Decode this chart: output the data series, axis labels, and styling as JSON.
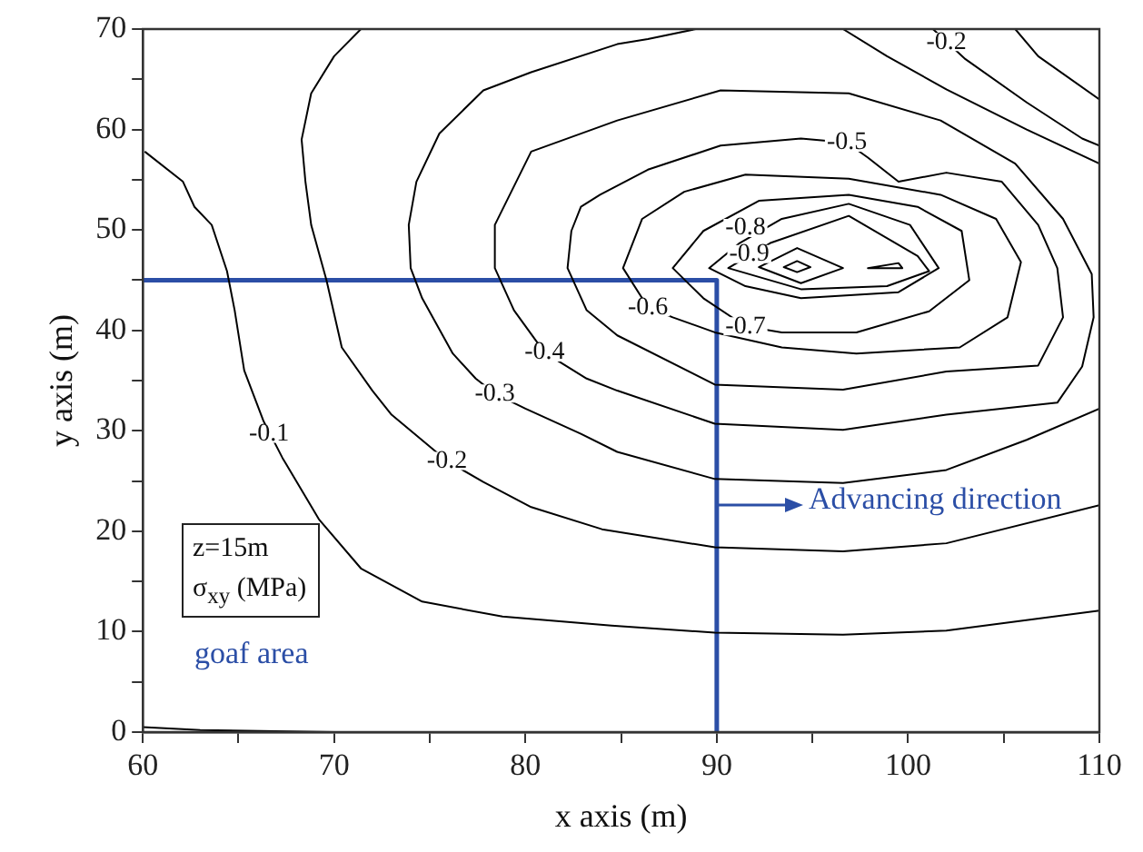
{
  "chart_data": {
    "type": "line",
    "xlabel": "x axis (m)",
    "ylabel": "y axis (m)",
    "xlim": [
      60,
      110
    ],
    "ylim": [
      0,
      70
    ],
    "xticks": [
      60,
      {
        "value": 65,
        "label": null
      },
      70,
      {
        "value": 75,
        "label": null
      },
      80,
      {
        "value": 85,
        "label": null
      },
      90,
      {
        "value": 95,
        "label": null
      },
      100,
      {
        "value": 105,
        "label": null
      },
      110
    ],
    "yticks": [
      0,
      {
        "value": 5,
        "label": null
      },
      10,
      {
        "value": 15,
        "label": null
      },
      20,
      {
        "value": 25,
        "label": null
      },
      30,
      {
        "value": 35,
        "label": null
      },
      40,
      {
        "value": 45,
        "label": null
      },
      50,
      {
        "value": 55,
        "label": null
      },
      60,
      {
        "value": 65,
        "label": null
      },
      70
    ],
    "grid": false,
    "legend": false,
    "marker": "none",
    "line_style": "solid",
    "series": [
      {
        "color": "#000000",
        "x": [
          60.1,
          62.1,
          62.7,
          63.6,
          64.4,
          64.8,
          65.3,
          66.3,
          67.3,
          69.2,
          71.4,
          74.6,
          78.8,
          84.5,
          89.9,
          96.6,
          102,
          110
        ],
        "values": [
          57.8,
          54.8,
          52.3,
          50.5,
          45.9,
          42,
          36,
          31,
          27.3,
          21.2,
          16.3,
          13,
          11.5,
          10.6,
          9.9,
          9.7,
          10.1,
          12.1
        ]
      },
      {
        "color": "#000000",
        "x": [
          71.4,
          70,
          68.8,
          68.3,
          68.5,
          68.8,
          69.6,
          70.4,
          72,
          73,
          75.9,
          77.8,
          80.3,
          84,
          89.9,
          96.6,
          102,
          110
        ],
        "values": [
          70,
          67.3,
          63.6,
          59,
          54.8,
          50.5,
          45,
          38.3,
          34,
          31.6,
          27,
          24.9,
          22.4,
          20.2,
          18.4,
          18,
          18.8,
          22.6
        ]
      },
      {
        "color": "#000000",
        "x": [
          88.9,
          86.4,
          84.8,
          80.3,
          77.8,
          75.5,
          74.3,
          73.9,
          74,
          74.6,
          76.2,
          77.4,
          78.4,
          80,
          82.9,
          84.8,
          89.9,
          96.6,
          102,
          106.2,
          110
        ],
        "values": [
          70,
          69,
          68.5,
          65.7,
          63.9,
          59.6,
          54.8,
          50.5,
          46.2,
          43.2,
          37.7,
          35.2,
          33.7,
          32.2,
          29.7,
          27.9,
          25.2,
          24.8,
          26.1,
          29.1,
          32.2
        ]
      },
      {
        "color": "#000000",
        "x": [
          84.8,
          80.3,
          78.4,
          78.4,
          79.4,
          81,
          83.2,
          84.8,
          89.9,
          96.6,
          102,
          107.8,
          109.1,
          109.7,
          109.6,
          108.1,
          105.6,
          101.7,
          96.9,
          90.2,
          84.8,
          80.3
        ],
        "values": [
          60.9,
          57.8,
          50.5,
          46.2,
          42,
          37.8,
          35.2,
          34,
          30.7,
          30.1,
          31.6,
          32.8,
          36.4,
          41.3,
          45.6,
          51.1,
          56.6,
          60.9,
          63.6,
          63.9,
          60.9,
          57.8
        ]
      },
      {
        "color": "#000000",
        "x": [
          83.9,
          82.9,
          82.4,
          82.2,
          83.2,
          84.8,
          89.9,
          96.6,
          102,
          106.8,
          108.1,
          107.8,
          106.8,
          104.9,
          102,
          99.5,
          97.9,
          96.8,
          94.4,
          90.2,
          86.4,
          83.9,
          82.9
        ],
        "values": [
          53.5,
          52.3,
          49.9,
          46.2,
          42,
          39.5,
          34.6,
          34.1,
          35.9,
          36.5,
          41.3,
          46.2,
          50.5,
          54.8,
          55.7,
          54.8,
          57.2,
          58.7,
          59.1,
          58.4,
          56,
          53.5,
          52.3
        ]
      },
      {
        "color": "#000000",
        "x": [
          85.1,
          86.1,
          88.3,
          91.5,
          96.9,
          101.7,
          104.6,
          105.9,
          105.2,
          102.7,
          97.3,
          93.4,
          89.9,
          87.7,
          86.4,
          85.1,
          86.1
        ],
        "values": [
          46.2,
          51.1,
          53.8,
          55.5,
          55.1,
          53.5,
          51.1,
          46.8,
          41.3,
          38.3,
          37.7,
          38.3,
          39.8,
          41.3,
          42.3,
          46.2,
          51.1
        ]
      },
      {
        "color": "#000000",
        "x": [
          87.7,
          89.3,
          92.2,
          96.9,
          100.5,
          102.8,
          103.2,
          101.1,
          97.3,
          93.4,
          91.5,
          89.3,
          87.7,
          89.3
        ],
        "values": [
          46.2,
          49.9,
          52.9,
          53.5,
          52.3,
          49.9,
          45,
          41.9,
          39.8,
          39.8,
          40.4,
          43.2,
          46.2,
          49.9
        ]
      },
      {
        "color": "#000000",
        "x": [
          89.6,
          91.2,
          93.4,
          96.9,
          100.1,
          101.6,
          99.5,
          94.4,
          91.5,
          89.6,
          91.2
        ],
        "values": [
          46.2,
          48.7,
          51.1,
          52.6,
          50.5,
          46.2,
          43.8,
          43.2,
          44.4,
          46.2,
          48.7
        ]
      },
      {
        "color": "#000000",
        "x": [
          90.6,
          92.8,
          96.9,
          100.5,
          101.1,
          98.9,
          94.4,
          90.6,
          92.8
        ],
        "values": [
          46.2,
          48.7,
          51.4,
          47.4,
          45.9,
          44.4,
          44.1,
          46.2,
          48.7
        ]
      },
      {
        "color": "#000000",
        "x": [
          92.2,
          94.2,
          96.6,
          94.4,
          92.2,
          94.2
        ],
        "values": [
          46.3,
          48.2,
          46.2,
          44.7,
          46.3,
          48.2
        ]
      },
      {
        "color": "#000000",
        "x": [
          93.5,
          94.2,
          94.9,
          94.2,
          93.5,
          94.2
        ],
        "values": [
          46.3,
          46.9,
          46.3,
          45.8,
          46.3,
          46.9
        ]
      },
      {
        "color": "#000000",
        "x": [
          97.9,
          99.5,
          99.7,
          97.9,
          99.5
        ],
        "values": [
          46.2,
          46.7,
          46.2,
          46.2,
          46.7
        ]
      },
      {
        "color": "#000000",
        "x": [
          96.6,
          98.9,
          102,
          106.2,
          110
        ],
        "values": [
          70,
          67.3,
          64,
          60,
          56.6
        ]
      },
      {
        "color": "#000000",
        "x": [
          101.3,
          103,
          106.2,
          109.1,
          110
        ],
        "values": [
          70,
          67,
          62.7,
          59.1,
          58.4
        ]
      },
      {
        "color": "#000000",
        "x": [
          105.6,
          106.8,
          110
        ],
        "values": [
          70,
          67.3,
          63
        ]
      },
      {
        "color": "#000000",
        "x": [
          60,
          63,
          70
        ],
        "values": [
          0.5,
          0.2,
          0
        ]
      },
      {
        "color": "#2b4ea6",
        "x": [
          60,
          90,
          90
        ],
        "values": [
          45,
          45,
          0
        ]
      }
    ],
    "annotations": [
      {
        "text": "-0.1",
        "x": 66.6,
        "y": 29.7
      },
      {
        "text": "-0.2",
        "x": 75.9,
        "y": 27
      },
      {
        "text": "-0.3",
        "x": 78.4,
        "y": 33.7
      },
      {
        "text": "-0.4",
        "x": 81,
        "y": 37.8
      },
      {
        "text": "-0.5",
        "x": 96.8,
        "y": 58.7
      },
      {
        "text": "-0.6",
        "x": 86.4,
        "y": 42.3
      },
      {
        "text": "-0.7",
        "x": 91.5,
        "y": 40.4
      },
      {
        "text": "-0.8",
        "x": 91.5,
        "y": 50.2
      },
      {
        "text": "-0.9",
        "x": 91.7,
        "y": 47.6
      },
      {
        "text": "-0.2",
        "x": 102,
        "y": 68.7
      },
      "z=15m",
      "σ$_{xy}$ (MPa)",
      "goaf area",
      "Advancing direction"
    ]
  }
}
